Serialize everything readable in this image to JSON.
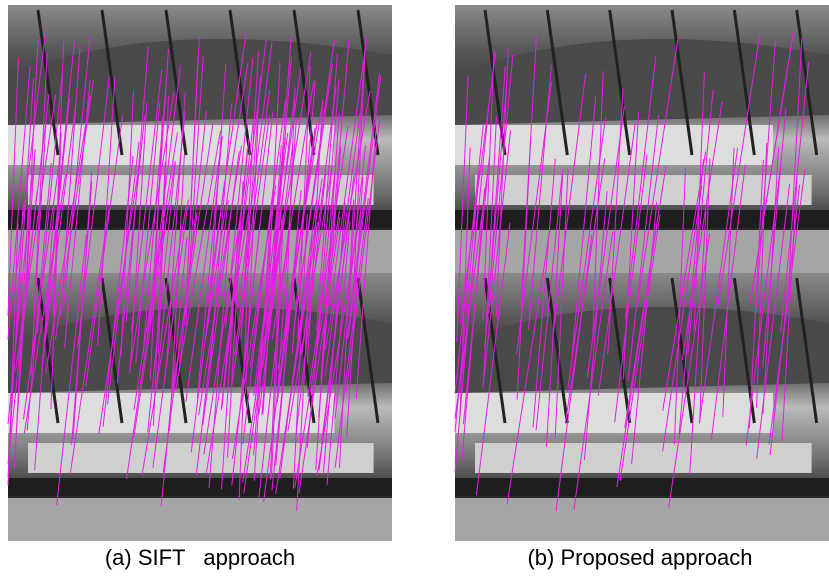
{
  "figure": {
    "panels": [
      {
        "caption": "(a) SIFT   approach"
      },
      {
        "caption": "(b) Proposed approach"
      }
    ]
  }
}
